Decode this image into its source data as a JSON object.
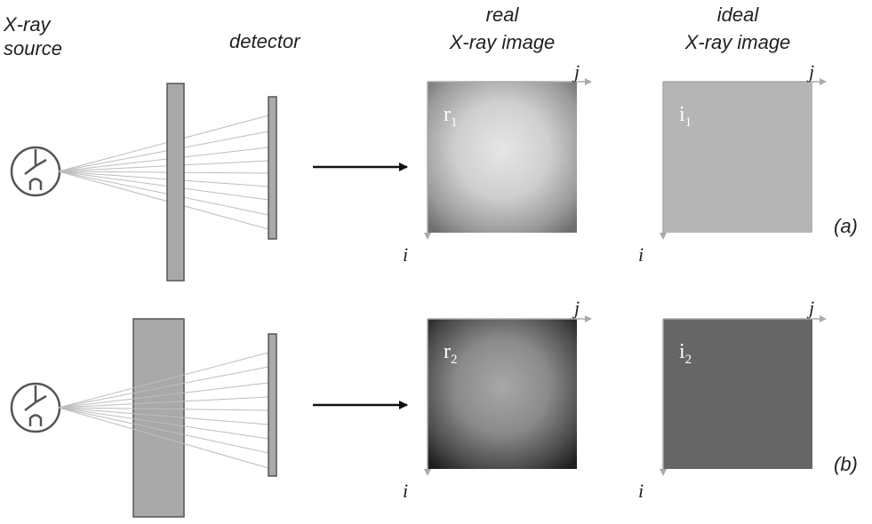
{
  "labels": {
    "source": "X-ray source",
    "detector": "detector",
    "real_title_1": "real",
    "real_title_2": "X-ray image",
    "ideal_title_1": "ideal",
    "ideal_title_2": "X-ray image",
    "row_a_tag": "(a)",
    "row_b_tag": "(b)"
  },
  "rows": {
    "a": {
      "real_image_label": "r",
      "real_image_sub": "1",
      "ideal_image_label": "i",
      "ideal_image_sub": "1",
      "axis_i": "i",
      "axis_j": "j"
    },
    "b": {
      "real_image_label": "r",
      "real_image_sub": "2",
      "ideal_image_label": "i",
      "ideal_image_sub": "2",
      "axis_i": "i",
      "axis_j": "j"
    }
  },
  "colors": {
    "outline": "#555555",
    "object_fill": "#a9a9a9",
    "ideal_a": "#b5b5b5",
    "ideal_b": "#666666",
    "ray": "#bdbdbd"
  }
}
